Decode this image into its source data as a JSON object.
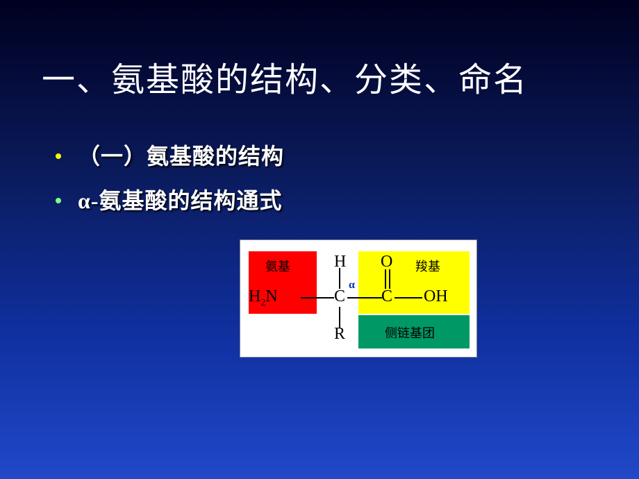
{
  "slide": {
    "title": "一、氨基酸的结构、分类、命名",
    "bullets": [
      {
        "text": "（一）氨基酸的结构",
        "dot_color": "#f8f800"
      },
      {
        "text": "α-氨基酸的结构通式",
        "dot_color": "#80ff80"
      }
    ],
    "background_gradient": [
      "#000020",
      "#0a1a5a",
      "#1030a0",
      "#2048c8"
    ]
  },
  "diagram": {
    "background": "#ffffff",
    "amino": {
      "box_color": "#ff0000",
      "label": "氨基",
      "formula": "H₂N"
    },
    "carboxyl": {
      "box_color": "#ffff00",
      "label": "羧基",
      "o_top": "O",
      "c": "C",
      "oh": "OH"
    },
    "sidechain": {
      "box_color": "#009966",
      "label": "侧链基团",
      "r": "R"
    },
    "center": {
      "h": "H",
      "c": "C",
      "alpha": "α"
    }
  }
}
